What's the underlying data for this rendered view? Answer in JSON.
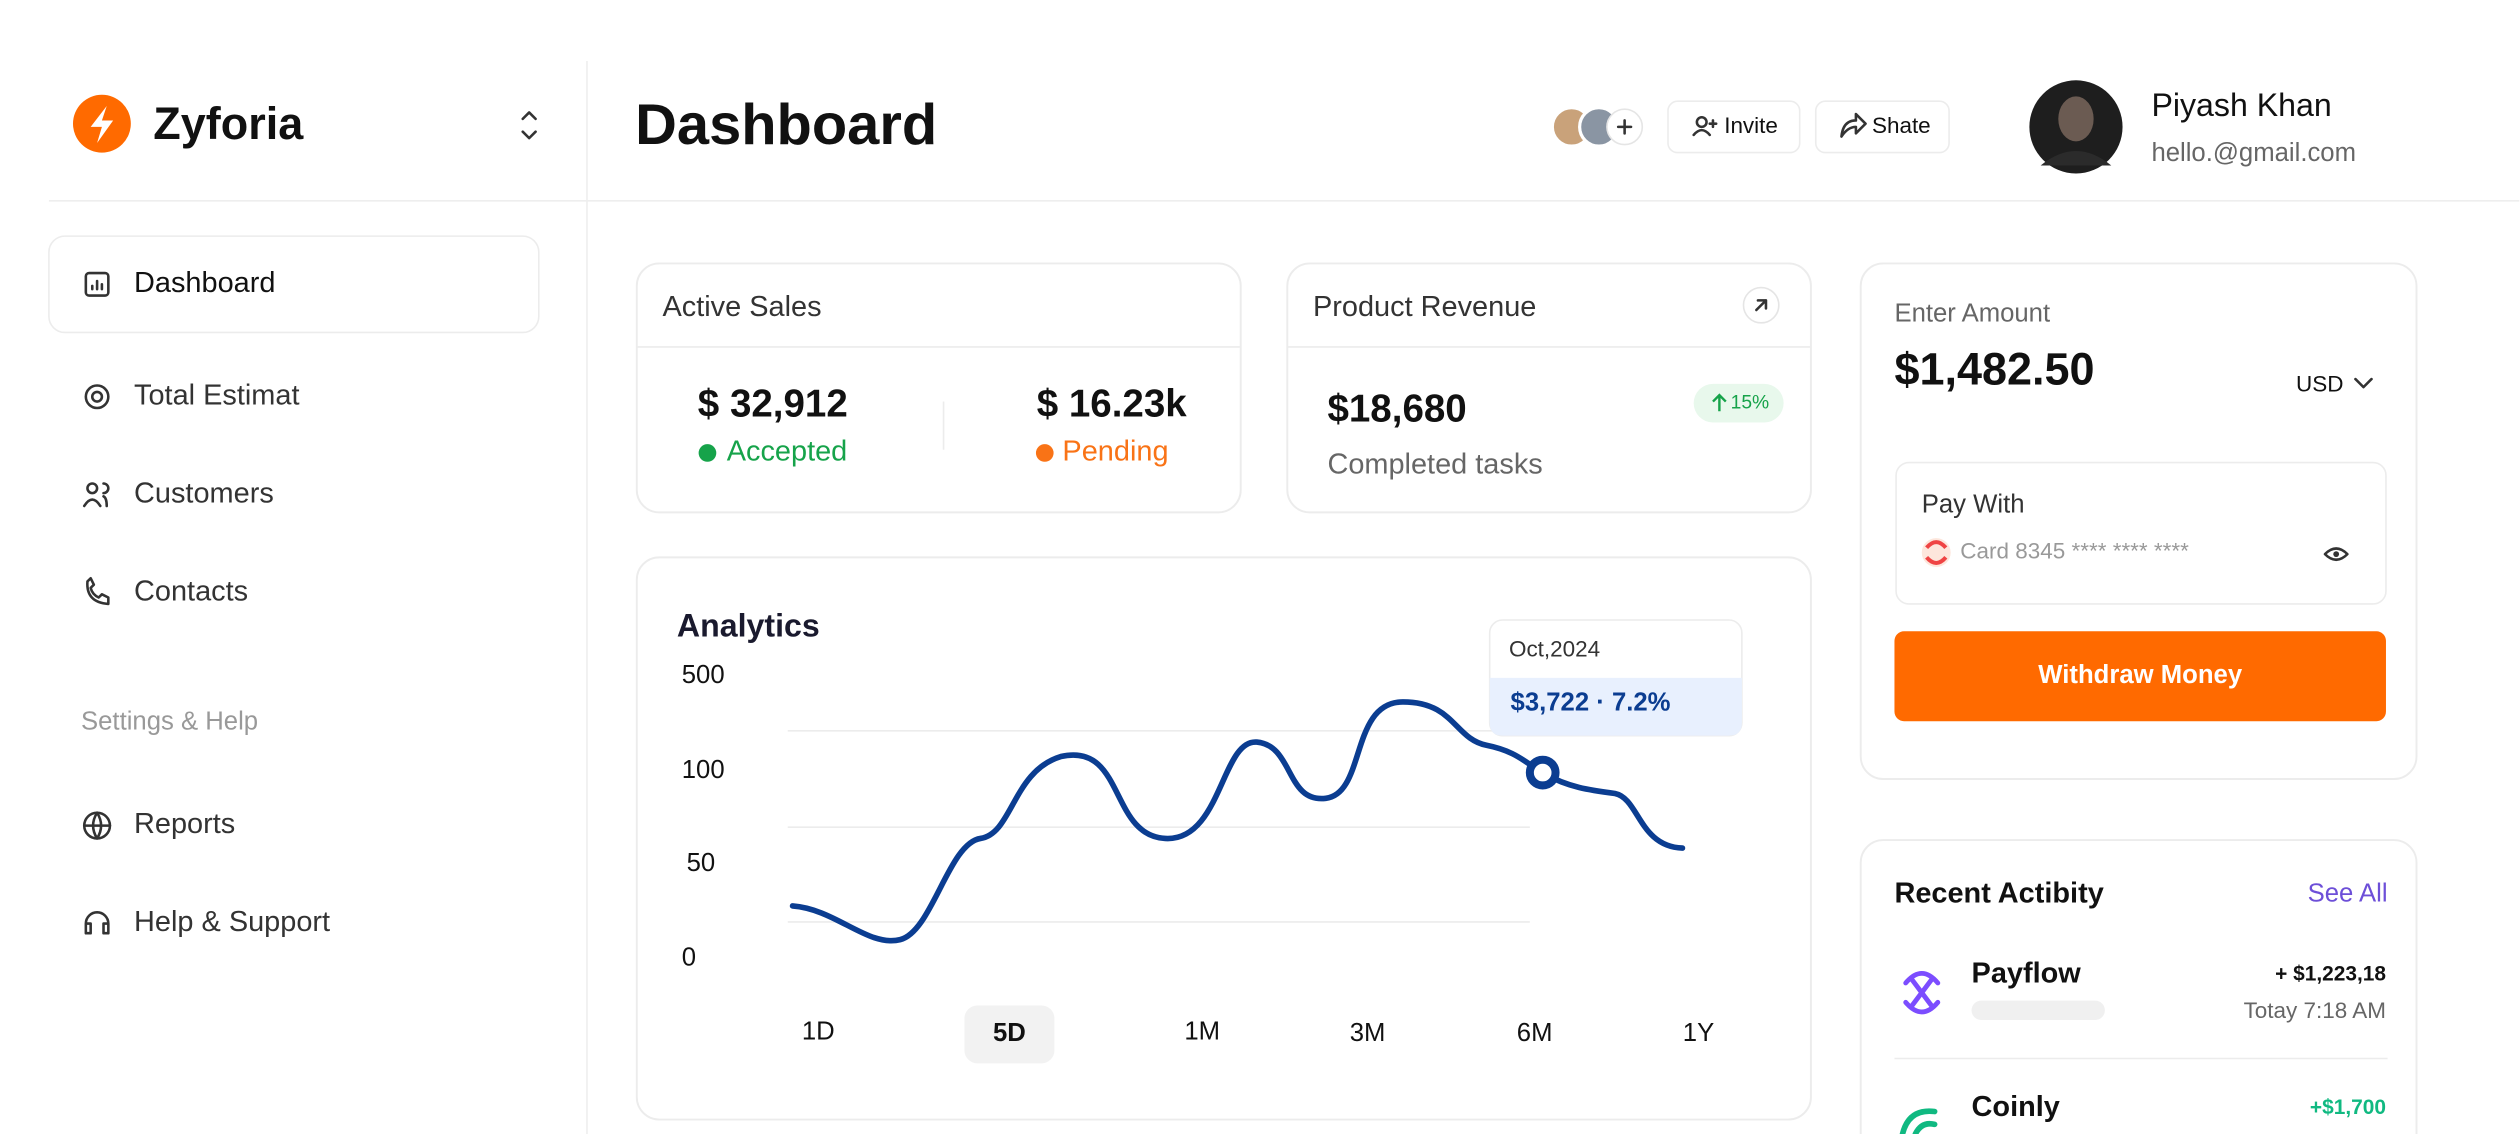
{
  "sidebar": {
    "brand": "Zyforia",
    "nav": [
      "Dashboard",
      "Total Estimat",
      "Customers",
      "Contacts"
    ],
    "section": "Settings & Help",
    "nav2": [
      "Reports",
      "Help & Support"
    ]
  },
  "header": {
    "title": "Dashboard",
    "buttons": [
      "Invite",
      "Shate"
    ],
    "user": {
      "name": "Piyash Khan",
      "email": "hello.@gmail.com"
    }
  },
  "active_sales": {
    "title": "Active Sales",
    "items": [
      {
        "value": "$ 32,912",
        "status": "Accepted"
      },
      {
        "value": "$ 16.23k",
        "status": "Pending"
      }
    ]
  },
  "product_revenue": {
    "title": "Product Revenue",
    "value": "$18,680",
    "label": "Completed tasks",
    "badge": "15%"
  },
  "analytics": {
    "title": "Analytics",
    "y_labels": [
      "500",
      "100",
      "50",
      "0"
    ],
    "x_labels": [
      "1D",
      "5D",
      "1M",
      "3M",
      "6M",
      "1Y"
    ],
    "tooltip": {
      "date": "Oct,2024",
      "value": "$3,722 · 7.2%"
    }
  },
  "payment": {
    "label": "Enter Amount",
    "amount": "$1,482.50",
    "currency": "USD",
    "pay_with": "Pay With",
    "card": "Card 8345 **** **** ****",
    "button": "Withdraw Money"
  },
  "recent": {
    "title": "Recent Actibity",
    "see_all": "See All",
    "items": [
      {
        "name": "Payflow",
        "amount": "+ $1,223,18",
        "time": "Totay 7:18 AM"
      },
      {
        "name": "Coinly",
        "amount": "+$1,700"
      }
    ]
  }
}
